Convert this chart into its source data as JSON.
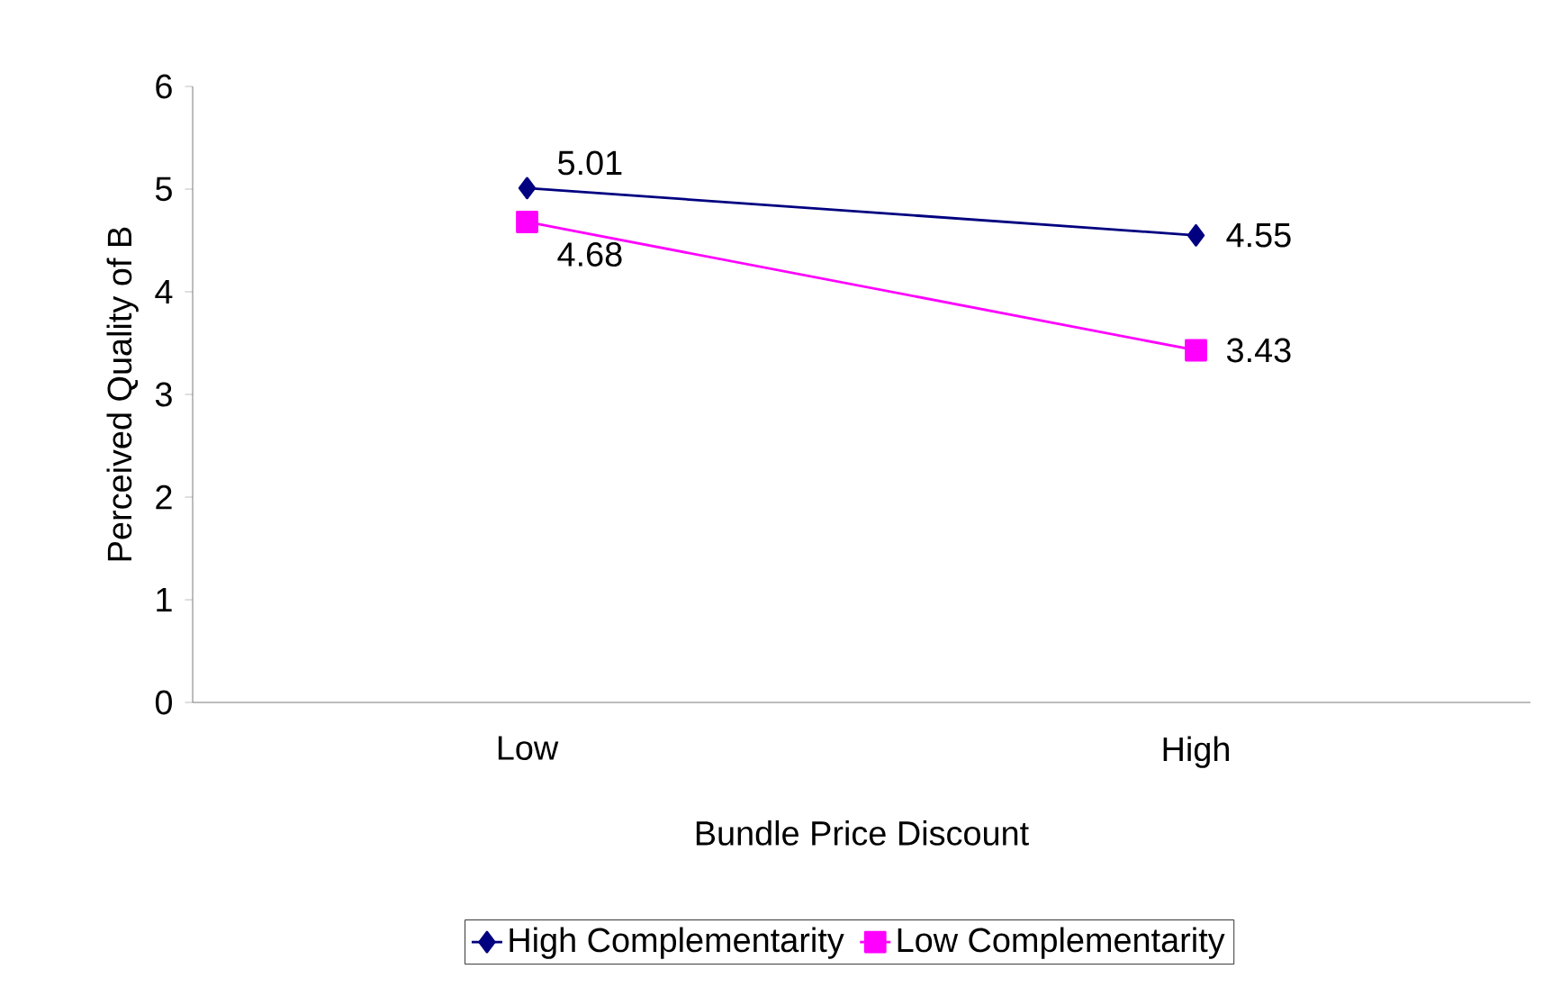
{
  "chart_data": {
    "type": "line",
    "xlabel": "Bundle Price Discount",
    "ylabel": "Perceived Quality of B",
    "categories": [
      "Low",
      "High"
    ],
    "series": [
      {
        "name": "High Complementarity",
        "color": "#000080",
        "marker": "diamond",
        "values": [
          5.01,
          4.55
        ]
      },
      {
        "name": "Low Complementarity",
        "color": "#ff00ff",
        "marker": "square",
        "values": [
          4.68,
          3.43
        ]
      }
    ],
    "ylim": [
      0,
      6
    ],
    "yticks": [
      0,
      1,
      2,
      3,
      4,
      5,
      6
    ],
    "data_labels": true,
    "legend": "bottom",
    "grid": false
  }
}
